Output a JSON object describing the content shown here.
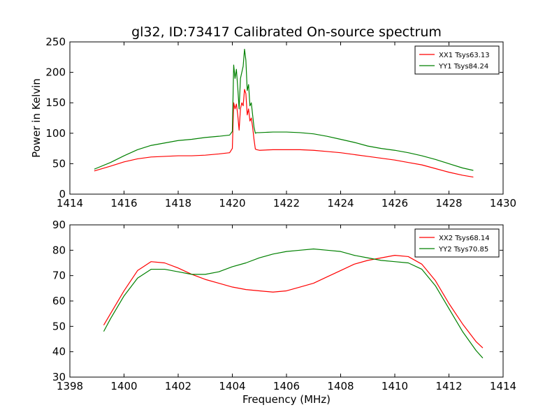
{
  "chart_data": [
    {
      "type": "line",
      "title": "gl32, ID:73417 Calibrated On-source spectrum",
      "ylabel": "Power in Kelvin",
      "xlabel": "",
      "xlim": [
        1414,
        1430
      ],
      "ylim": [
        0,
        250
      ],
      "xticks": [
        1414,
        1416,
        1418,
        1420,
        1422,
        1424,
        1426,
        1428,
        1430
      ],
      "yticks": [
        0,
        50,
        100,
        150,
        200,
        250
      ],
      "grid": false,
      "legend_position": "top-right",
      "series": [
        {
          "name": "XX1 Tsys63.13",
          "color": "#ff0000",
          "x": [
            1414.9,
            1415.5,
            1416.0,
            1416.5,
            1417.0,
            1417.5,
            1418.0,
            1418.5,
            1419.0,
            1419.5,
            1419.9,
            1420.0,
            1420.05,
            1420.1,
            1420.15,
            1420.2,
            1420.25,
            1420.3,
            1420.35,
            1420.4,
            1420.45,
            1420.5,
            1420.55,
            1420.6,
            1420.65,
            1420.7,
            1420.75,
            1420.8,
            1420.85,
            1420.9,
            1421.0,
            1421.5,
            1422.0,
            1422.5,
            1423.0,
            1423.5,
            1424.0,
            1424.5,
            1425.0,
            1425.5,
            1426.0,
            1426.5,
            1427.0,
            1427.5,
            1428.0,
            1428.5,
            1428.9
          ],
          "y": [
            38,
            46,
            53,
            58,
            61,
            62,
            63,
            63,
            64,
            66,
            68,
            75,
            150,
            140,
            148,
            130,
            105,
            140,
            150,
            145,
            172,
            165,
            130,
            140,
            120,
            125,
            110,
            90,
            74,
            73,
            72,
            73,
            73,
            73,
            72,
            70,
            68,
            65,
            62,
            59,
            56,
            52,
            48,
            42,
            36,
            31,
            28
          ]
        },
        {
          "name": "YY1 Tsys84.24",
          "color": "#008000",
          "x": [
            1414.9,
            1415.5,
            1416.0,
            1416.5,
            1417.0,
            1417.5,
            1418.0,
            1418.5,
            1419.0,
            1419.5,
            1419.9,
            1420.0,
            1420.05,
            1420.1,
            1420.15,
            1420.2,
            1420.25,
            1420.3,
            1420.35,
            1420.4,
            1420.45,
            1420.5,
            1420.55,
            1420.6,
            1420.65,
            1420.7,
            1420.75,
            1420.8,
            1420.85,
            1420.9,
            1421.0,
            1421.5,
            1422.0,
            1422.5,
            1423.0,
            1423.5,
            1424.0,
            1424.5,
            1425.0,
            1425.5,
            1426.0,
            1426.5,
            1427.0,
            1427.5,
            1428.0,
            1428.5,
            1428.9
          ],
          "y": [
            41,
            52,
            63,
            73,
            80,
            84,
            88,
            90,
            93,
            95,
            97,
            103,
            212,
            190,
            205,
            175,
            140,
            190,
            200,
            210,
            238,
            220,
            170,
            180,
            145,
            150,
            130,
            110,
            100,
            101,
            101,
            102,
            102,
            101,
            99,
            95,
            90,
            85,
            79,
            75,
            72,
            68,
            63,
            57,
            50,
            43,
            39
          ]
        }
      ]
    },
    {
      "type": "line",
      "title": "",
      "xlabel": "Frequency (MHz)",
      "ylabel": "",
      "xlim": [
        1398,
        1414
      ],
      "ylim": [
        30,
        90
      ],
      "xticks": [
        1398,
        1400,
        1402,
        1404,
        1406,
        1408,
        1410,
        1412,
        1414
      ],
      "yticks": [
        30,
        40,
        50,
        60,
        70,
        80,
        90
      ],
      "grid": false,
      "legend_position": "top-right",
      "series": [
        {
          "name": "XX2 Tsys68.14",
          "color": "#ff0000",
          "x": [
            1399.25,
            1399.5,
            1400.0,
            1400.5,
            1401.0,
            1401.5,
            1402.0,
            1402.5,
            1403.0,
            1403.5,
            1404.0,
            1404.5,
            1405.0,
            1405.5,
            1406.0,
            1406.5,
            1407.0,
            1407.5,
            1408.0,
            1408.5,
            1409.0,
            1409.5,
            1410.0,
            1410.5,
            1411.0,
            1411.5,
            1412.0,
            1412.5,
            1413.0,
            1413.25
          ],
          "y": [
            50.5,
            55,
            64,
            72,
            75.5,
            75,
            73,
            70.5,
            68.5,
            67,
            65.5,
            64.5,
            64,
            63.5,
            64,
            65.5,
            67,
            69.5,
            72,
            74.5,
            76,
            77,
            78,
            77.5,
            74.5,
            68,
            59,
            51,
            44,
            41.5
          ]
        },
        {
          "name": "YY2 Tsys70.85",
          "color": "#008000",
          "x": [
            1399.25,
            1399.5,
            1400.0,
            1400.5,
            1401.0,
            1401.5,
            1402.0,
            1402.5,
            1403.0,
            1403.5,
            1404.0,
            1404.5,
            1405.0,
            1405.5,
            1406.0,
            1406.5,
            1407.0,
            1407.5,
            1408.0,
            1408.5,
            1409.0,
            1409.5,
            1410.0,
            1410.5,
            1411.0,
            1411.5,
            1412.0,
            1412.5,
            1413.0,
            1413.25
          ],
          "y": [
            48,
            53,
            62,
            69,
            72.5,
            72.5,
            71.5,
            70.5,
            70.5,
            71.5,
            73.5,
            75,
            77,
            78.5,
            79.5,
            80,
            80.5,
            80,
            79.5,
            78,
            77,
            76,
            75.5,
            75,
            72.5,
            66,
            57,
            48,
            40.5,
            37.5
          ]
        }
      ]
    }
  ]
}
